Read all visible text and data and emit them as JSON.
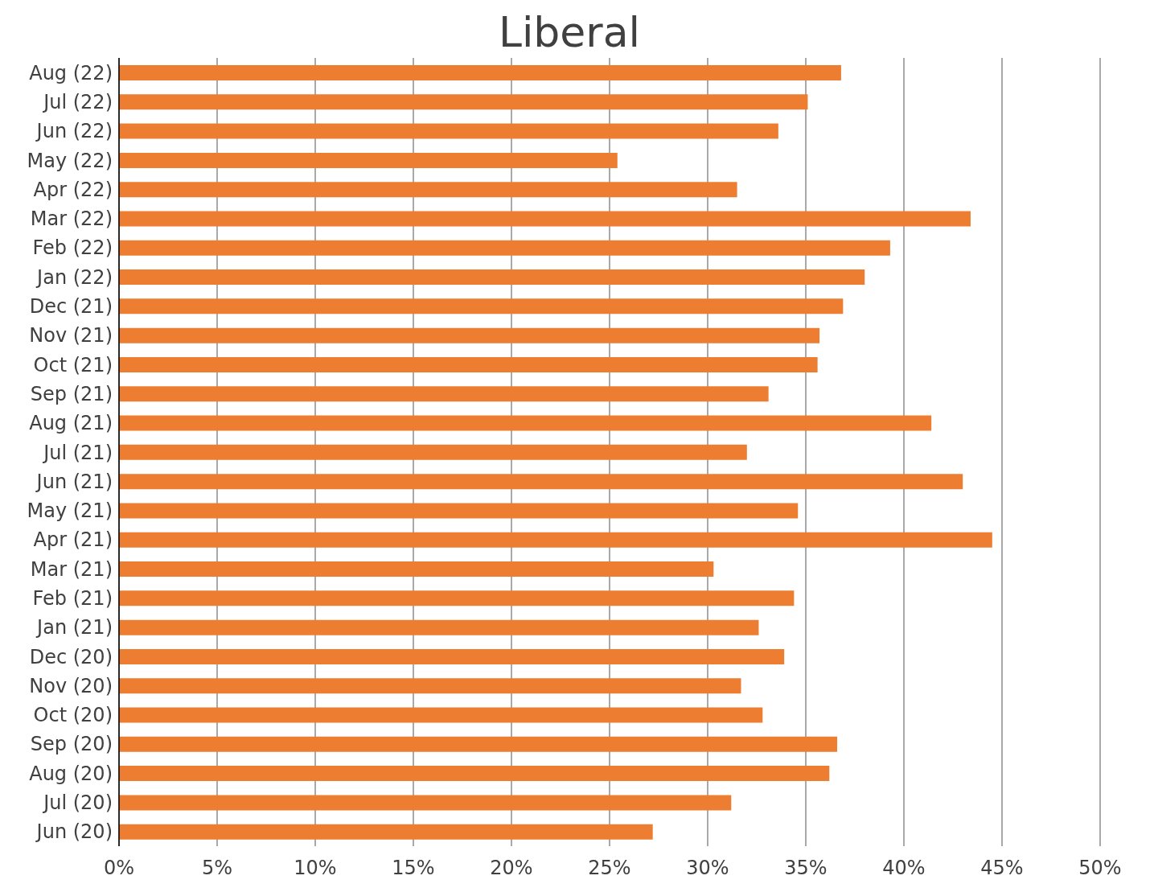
{
  "chart_data": {
    "type": "bar",
    "orientation": "horizontal",
    "title": "Liberal",
    "categories": [
      "Aug (22)",
      "Jul (22)",
      "Jun (22)",
      "May (22)",
      "Apr (22)",
      "Mar (22)",
      "Feb (22)",
      "Jan (22)",
      "Dec (21)",
      "Nov (21)",
      "Oct (21)",
      "Sep (21)",
      "Aug (21)",
      "Jul (21)",
      "Jun (21)",
      "May (21)",
      "Apr (21)",
      "Mar (21)",
      "Feb (21)",
      "Jan (21)",
      "Dec (20)",
      "Nov (20)",
      "Oct (20)",
      "Sep (20)",
      "Aug (20)",
      "Jul (20)",
      "Jun (20)"
    ],
    "values": [
      36.8,
      35.1,
      33.6,
      25.4,
      31.5,
      43.4,
      39.3,
      38.0,
      36.9,
      35.7,
      35.6,
      33.1,
      41.4,
      32.0,
      43.0,
      34.6,
      44.5,
      30.3,
      34.4,
      32.6,
      33.9,
      31.7,
      32.8,
      36.6,
      36.2,
      31.2,
      27.2
    ],
    "color": "#ed7d31",
    "xlim": [
      0,
      50
    ],
    "xticks": [
      {
        "value": 0,
        "label": "0%"
      },
      {
        "value": 5,
        "label": "5%"
      },
      {
        "value": 10,
        "label": "10%"
      },
      {
        "value": 15,
        "label": "15%"
      },
      {
        "value": 20,
        "label": "20%"
      },
      {
        "value": 25,
        "label": "25%"
      },
      {
        "value": 30,
        "label": "30%"
      },
      {
        "value": 35,
        "label": "35%"
      },
      {
        "value": 40,
        "label": "40%"
      },
      {
        "value": 45,
        "label": "45%"
      },
      {
        "value": 50,
        "label": "50%"
      }
    ],
    "grid": "x"
  }
}
